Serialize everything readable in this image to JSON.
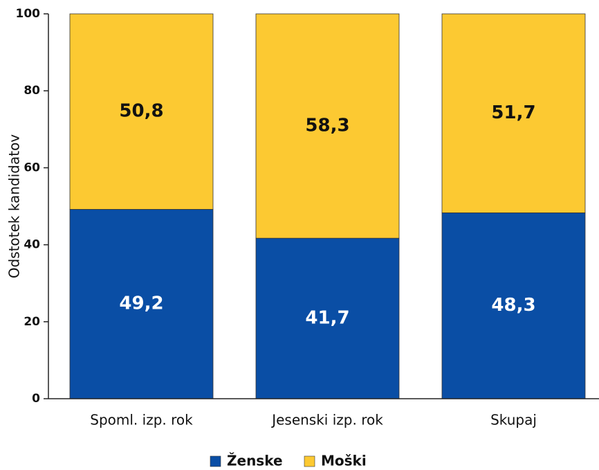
{
  "chart_data": {
    "type": "stacked_bar",
    "y_label": "Odstotek kandidatov",
    "categories": [
      "Spoml. izp. rok",
      "Jesenski izp. rok",
      "Skupaj"
    ],
    "series": [
      {
        "name": "Ženske",
        "color": "#0a4ea5",
        "values": [
          49.2,
          41.7,
          48.3
        ],
        "value_labels": [
          "49,2",
          "41,7",
          "48,3"
        ]
      },
      {
        "name": "Moški",
        "color": "#fcc932",
        "values": [
          50.8,
          58.3,
          51.7
        ],
        "value_labels": [
          "50,8",
          "58,3",
          "51,7"
        ]
      }
    ],
    "ylim": [
      0,
      100
    ],
    "yticks": [
      0,
      20,
      40,
      60,
      80,
      100
    ],
    "legend": "bottom"
  }
}
